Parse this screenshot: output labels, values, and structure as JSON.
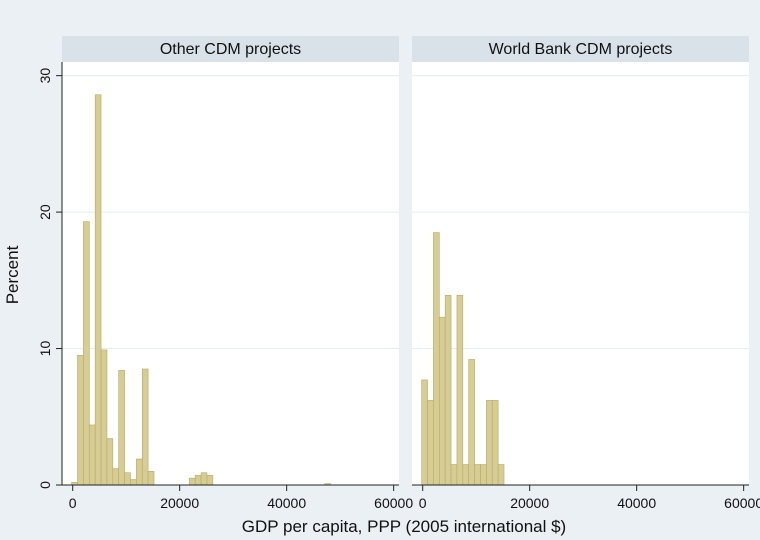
{
  "chart_data": {
    "type": "bar",
    "ylabel": "Percent",
    "xlabel": "GDP per capita, PPP (2005 international $)",
    "ylim": [
      0,
      31
    ],
    "xlim": [
      -2000,
      61000
    ],
    "yticks": [
      0,
      10,
      20,
      30
    ],
    "xticks": [
      0,
      20000,
      40000,
      60000
    ],
    "grid": true,
    "bin_width": 1100,
    "bar_color": "#d7cd94",
    "bar_stroke": "#b5a96a",
    "panel_bg": "#ffffff",
    "outer_bg": "#eaf0f3",
    "strip_bg": "#d8e2e8",
    "panels": [
      {
        "title": "Other CDM projects",
        "bins": [
          {
            "x": 350,
            "y": 0.2
          },
          {
            "x": 1450,
            "y": 9.5
          },
          {
            "x": 2550,
            "y": 19.3
          },
          {
            "x": 3650,
            "y": 4.4
          },
          {
            "x": 4750,
            "y": 28.6
          },
          {
            "x": 5850,
            "y": 9.9
          },
          {
            "x": 6950,
            "y": 3.4
          },
          {
            "x": 8050,
            "y": 1.2
          },
          {
            "x": 9150,
            "y": 8.4
          },
          {
            "x": 10250,
            "y": 0.9
          },
          {
            "x": 11350,
            "y": 0.4
          },
          {
            "x": 12450,
            "y": 1.9
          },
          {
            "x": 13550,
            "y": 8.5
          },
          {
            "x": 14650,
            "y": 1.0
          },
          {
            "x": 22350,
            "y": 0.5
          },
          {
            "x": 23450,
            "y": 0.7
          },
          {
            "x": 24550,
            "y": 0.9
          },
          {
            "x": 25650,
            "y": 0.7
          },
          {
            "x": 47650,
            "y": 0.1
          }
        ]
      },
      {
        "title": "World Bank CDM projects",
        "bins": [
          {
            "x": 350,
            "y": 7.7
          },
          {
            "x": 1450,
            "y": 6.2
          },
          {
            "x": 2550,
            "y": 18.5
          },
          {
            "x": 3650,
            "y": 12.3
          },
          {
            "x": 4750,
            "y": 13.9
          },
          {
            "x": 5850,
            "y": 1.5
          },
          {
            "x": 6950,
            "y": 13.9
          },
          {
            "x": 8050,
            "y": 1.5
          },
          {
            "x": 9150,
            "y": 9.2
          },
          {
            "x": 10250,
            "y": 1.5
          },
          {
            "x": 11350,
            "y": 1.5
          },
          {
            "x": 12450,
            "y": 6.2
          },
          {
            "x": 13550,
            "y": 6.2
          },
          {
            "x": 14650,
            "y": 1.5
          }
        ]
      }
    ]
  }
}
